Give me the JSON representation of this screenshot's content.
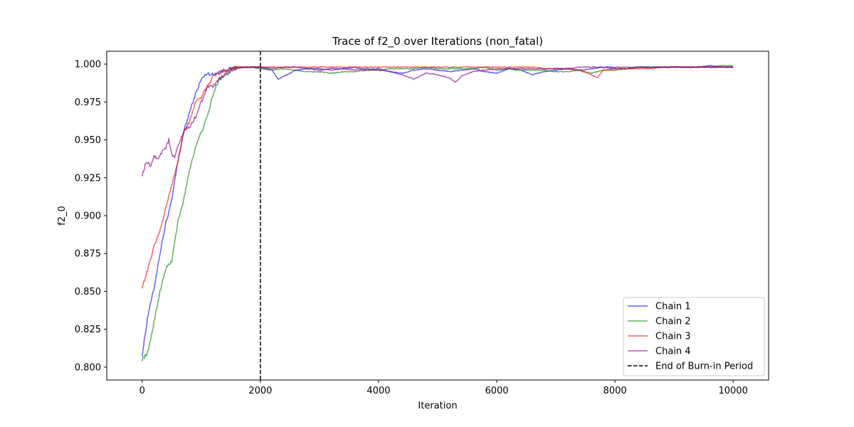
{
  "chart_data": {
    "type": "line",
    "title": "Trace of f2_0 over Iterations (non_fatal)",
    "xlabel": "Iteration",
    "ylabel": "f2_0",
    "xlim": [
      -600,
      10600
    ],
    "ylim": [
      0.7915,
      1.0085
    ],
    "xticks": [
      0,
      2000,
      4000,
      6000,
      8000,
      10000
    ],
    "xtick_labels": [
      "0",
      "2000",
      "4000",
      "6000",
      "8000",
      "10000"
    ],
    "yticks": [
      0.8,
      0.825,
      0.85,
      0.875,
      0.9,
      0.925,
      0.95,
      0.975,
      1.0
    ],
    "ytick_labels": [
      "0.800",
      "0.825",
      "0.850",
      "0.875",
      "0.900",
      "0.925",
      "0.950",
      "0.975",
      "1.000"
    ],
    "grid": false,
    "legend_position": "bottom-right",
    "series": [
      {
        "name": "Chain 1",
        "color": "#0000ff",
        "x": [
          0,
          100,
          200,
          300,
          400,
          500,
          600,
          700,
          800,
          900,
          1000,
          1100,
          1200,
          1300,
          1400,
          1500,
          1600,
          1800,
          2000,
          2200,
          2300,
          2400,
          2600,
          2800,
          3000,
          3200,
          3400,
          3600,
          3800,
          4000,
          4200,
          4400,
          4600,
          4800,
          5000,
          5200,
          5400,
          5600,
          5800,
          6000,
          6200,
          6400,
          6600,
          6800,
          7000,
          7200,
          7400,
          7600,
          7800,
          8000,
          8200,
          8400,
          8600,
          8800,
          9000,
          9200,
          9400,
          9600,
          9800,
          10000
        ],
        "y": [
          0.808,
          0.835,
          0.852,
          0.875,
          0.895,
          0.91,
          0.935,
          0.955,
          0.968,
          0.98,
          0.99,
          0.994,
          0.993,
          0.995,
          0.996,
          0.997,
          0.998,
          0.998,
          0.998,
          0.996,
          0.99,
          0.992,
          0.996,
          0.997,
          0.996,
          0.997,
          0.997,
          0.998,
          0.996,
          0.997,
          0.995,
          0.994,
          0.996,
          0.997,
          0.996,
          0.995,
          0.996,
          0.997,
          0.995,
          0.994,
          0.997,
          0.996,
          0.993,
          0.995,
          0.996,
          0.997,
          0.996,
          0.997,
          0.998,
          0.997,
          0.997,
          0.998,
          0.998,
          0.998,
          0.998,
          0.998,
          0.998,
          0.999,
          0.998,
          0.998
        ]
      },
      {
        "name": "Chain 2",
        "color": "#008000",
        "x": [
          0,
          100,
          200,
          300,
          400,
          500,
          600,
          700,
          800,
          900,
          1000,
          1100,
          1200,
          1300,
          1400,
          1500,
          1600,
          1800,
          2000,
          2200,
          2400,
          2600,
          2800,
          3000,
          3200,
          3400,
          3600,
          3800,
          4000,
          4200,
          4400,
          4600,
          4800,
          5000,
          5200,
          5400,
          5600,
          5800,
          6000,
          6200,
          6400,
          6600,
          6800,
          7000,
          7200,
          7400,
          7600,
          7800,
          8000,
          8200,
          8400,
          8600,
          8800,
          9000,
          9200,
          9400,
          9600,
          9800,
          10000
        ],
        "y": [
          0.805,
          0.81,
          0.83,
          0.85,
          0.865,
          0.87,
          0.895,
          0.91,
          0.93,
          0.945,
          0.955,
          0.965,
          0.98,
          0.99,
          0.993,
          0.997,
          0.998,
          0.998,
          0.997,
          0.996,
          0.997,
          0.996,
          0.995,
          0.995,
          0.994,
          0.995,
          0.995,
          0.996,
          0.996,
          0.997,
          0.997,
          0.997,
          0.998,
          0.997,
          0.997,
          0.997,
          0.997,
          0.998,
          0.996,
          0.997,
          0.996,
          0.996,
          0.996,
          0.995,
          0.995,
          0.996,
          0.994,
          0.996,
          0.996,
          0.997,
          0.998,
          0.998,
          0.998,
          0.998,
          0.998,
          0.998,
          0.998,
          0.999,
          0.999
        ]
      },
      {
        "name": "Chain 3",
        "color": "#ff0000",
        "x": [
          0,
          100,
          200,
          300,
          400,
          500,
          600,
          700,
          800,
          900,
          1000,
          1100,
          1200,
          1300,
          1400,
          1500,
          1600,
          1800,
          2000,
          2200,
          2400,
          2600,
          2800,
          3000,
          3200,
          3400,
          3600,
          3800,
          4000,
          4200,
          4400,
          4600,
          4800,
          5000,
          5200,
          5400,
          5600,
          5800,
          6000,
          6200,
          6400,
          6600,
          6800,
          7000,
          7200,
          7400,
          7600,
          7700,
          7800,
          8000,
          8200,
          8400,
          8600,
          8800,
          9000,
          9200,
          9400,
          9600,
          9800,
          10000
        ],
        "y": [
          0.853,
          0.865,
          0.88,
          0.89,
          0.905,
          0.92,
          0.935,
          0.955,
          0.962,
          0.975,
          0.978,
          0.985,
          0.992,
          0.994,
          0.996,
          0.997,
          0.998,
          0.998,
          0.998,
          0.998,
          0.998,
          0.998,
          0.998,
          0.998,
          0.998,
          0.998,
          0.998,
          0.998,
          0.998,
          0.998,
          0.998,
          0.998,
          0.998,
          0.998,
          0.998,
          0.998,
          0.998,
          0.998,
          0.998,
          0.998,
          0.998,
          0.998,
          0.997,
          0.997,
          0.997,
          0.996,
          0.993,
          0.991,
          0.996,
          0.997,
          0.997,
          0.997,
          0.997,
          0.998,
          0.998,
          0.998,
          0.998,
          0.998,
          0.998,
          0.998
        ]
      },
      {
        "name": "Chain 4",
        "color": "#800080",
        "x": [
          0,
          50,
          100,
          150,
          200,
          250,
          300,
          350,
          400,
          450,
          500,
          550,
          600,
          650,
          700,
          750,
          800,
          900,
          1000,
          1100,
          1200,
          1300,
          1400,
          1500,
          1600,
          1800,
          2000,
          2200,
          2400,
          2600,
          2800,
          3000,
          3200,
          3400,
          3600,
          3800,
          4000,
          4200,
          4400,
          4600,
          4700,
          4800,
          5000,
          5200,
          5300,
          5400,
          5600,
          5800,
          6000,
          6200,
          6400,
          6600,
          6800,
          7000,
          7200,
          7400,
          7600,
          7800,
          8000,
          8200,
          8400,
          8600,
          8800,
          9000,
          9200,
          9400,
          9600,
          9800,
          10000
        ],
        "y": [
          0.927,
          0.933,
          0.935,
          0.932,
          0.94,
          0.937,
          0.94,
          0.943,
          0.945,
          0.95,
          0.94,
          0.938,
          0.945,
          0.95,
          0.955,
          0.958,
          0.958,
          0.965,
          0.975,
          0.985,
          0.985,
          0.99,
          0.993,
          0.995,
          0.997,
          0.998,
          0.998,
          0.997,
          0.998,
          0.998,
          0.997,
          0.997,
          0.996,
          0.997,
          0.996,
          0.997,
          0.996,
          0.995,
          0.993,
          0.99,
          0.992,
          0.994,
          0.993,
          0.991,
          0.988,
          0.992,
          0.995,
          0.996,
          0.997,
          0.997,
          0.997,
          0.997,
          0.997,
          0.997,
          0.997,
          0.998,
          0.998,
          0.998,
          0.998,
          0.998,
          0.998,
          0.998,
          0.998,
          0.998,
          0.998,
          0.998,
          0.998,
          0.998,
          0.998
        ]
      }
    ],
    "burn_in": {
      "name": "End of Burn-in Period",
      "x": 2000,
      "color": "#000000",
      "style": "dashed"
    }
  }
}
